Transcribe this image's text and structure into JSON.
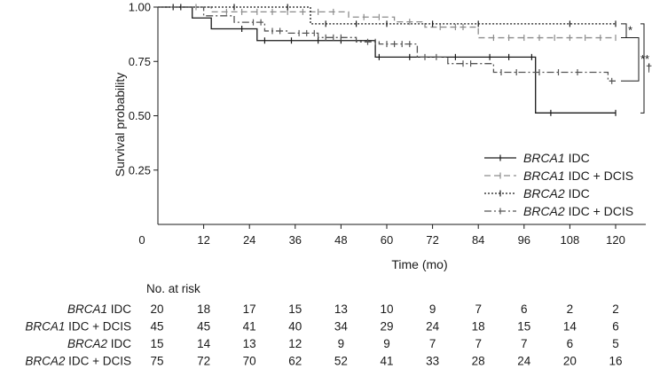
{
  "chart_data": {
    "type": "line",
    "xlabel": "Time (mo)",
    "ylabel": "Survival probability",
    "xlim": [
      0,
      125
    ],
    "ylim": [
      0,
      1.0
    ],
    "x_ticks": [
      0,
      12,
      24,
      36,
      48,
      60,
      72,
      84,
      96,
      108,
      120
    ],
    "x_tick_labels": [
      "0",
      "12",
      "24",
      "36",
      "48",
      "60",
      "72",
      "84",
      "96",
      "108",
      "120"
    ],
    "y_ticks": [
      0.25,
      0.5,
      0.75,
      1.0
    ],
    "y_tick_labels": [
      "0.25",
      "0.50",
      "0.75",
      "1.00"
    ],
    "grid": false,
    "legend_position": "bottom-right",
    "series": [
      {
        "name": "IDC",
        "gene": "BRCA1",
        "color": "#1a1a1a",
        "style": "solid",
        "x": [
          0,
          9,
          14,
          26,
          57,
          99,
          120
        ],
        "y": [
          1.0,
          0.95,
          0.9,
          0.846,
          0.77,
          0.513,
          0.513
        ],
        "censor_x": [
          4,
          22,
          28,
          35,
          42,
          48,
          58,
          66,
          78,
          87,
          92,
          98,
          103,
          120
        ],
        "censor_y": [
          1.0,
          0.9,
          0.846,
          0.846,
          0.846,
          0.846,
          0.77,
          0.77,
          0.77,
          0.77,
          0.77,
          0.77,
          0.513,
          0.513
        ]
      },
      {
        "name": "IDC + DCIS",
        "gene": "BRCA1",
        "color": "#8c8c8c",
        "style": "dashed",
        "x": [
          0,
          14,
          50,
          62,
          70,
          84,
          120
        ],
        "y": [
          1.0,
          0.978,
          0.954,
          0.932,
          0.908,
          0.859,
          0.859
        ],
        "censor_x": [
          10,
          18,
          22,
          26,
          30,
          34,
          38,
          42,
          46,
          54,
          58,
          66,
          74,
          78,
          80,
          88,
          92,
          96,
          100,
          104,
          108,
          112,
          116,
          120
        ],
        "censor_y": [
          1.0,
          0.978,
          0.978,
          0.978,
          0.978,
          0.978,
          0.978,
          0.978,
          0.978,
          0.954,
          0.954,
          0.932,
          0.908,
          0.908,
          0.908,
          0.859,
          0.859,
          0.859,
          0.859,
          0.859,
          0.859,
          0.859,
          0.859,
          0.859
        ]
      },
      {
        "name": "IDC",
        "gene": "BRCA2",
        "color": "#1a1a1a",
        "style": "dotted",
        "x": [
          0,
          40,
          120
        ],
        "y": [
          1.0,
          0.923,
          0.923
        ],
        "censor_x": [
          6,
          20,
          34,
          44,
          52,
          60,
          72,
          84,
          108,
          120
        ],
        "censor_y": [
          1.0,
          1.0,
          1.0,
          0.923,
          0.923,
          0.923,
          0.923,
          0.923,
          0.923,
          0.923
        ]
      },
      {
        "name": "IDC + DCIS",
        "gene": "BRCA2",
        "color": "#555555",
        "style": "dashdot",
        "x": [
          0,
          12,
          20,
          28,
          34,
          42,
          52,
          58,
          68,
          76,
          88,
          118,
          120
        ],
        "y": [
          1.0,
          0.96,
          0.93,
          0.89,
          0.88,
          0.86,
          0.84,
          0.83,
          0.77,
          0.74,
          0.7,
          0.66,
          0.66
        ],
        "censor_x": [
          25,
          27,
          30,
          32,
          37,
          39,
          41,
          44,
          46,
          48,
          55,
          57,
          60,
          62,
          64,
          66,
          70,
          73,
          80,
          82,
          90,
          94,
          100,
          105,
          110,
          119
        ],
        "censor_y": [
          0.93,
          0.93,
          0.89,
          0.89,
          0.88,
          0.88,
          0.88,
          0.86,
          0.86,
          0.86,
          0.84,
          0.84,
          0.83,
          0.83,
          0.83,
          0.83,
          0.77,
          0.77,
          0.74,
          0.74,
          0.7,
          0.7,
          0.7,
          0.7,
          0.7,
          0.66
        ]
      }
    ],
    "brackets": [
      {
        "from_series": 2,
        "to_series": 1,
        "label": "*"
      },
      {
        "from_series": 1,
        "to_series": 3,
        "label": "**"
      },
      {
        "from_series": 2,
        "to_series": 0,
        "label": "†"
      }
    ],
    "risk_table": {
      "header": "No. at risk",
      "rows": [
        {
          "gene": "BRCA1",
          "suffix": " IDC",
          "values": [
            20,
            18,
            17,
            15,
            13,
            10,
            9,
            7,
            6,
            2,
            2
          ]
        },
        {
          "gene": "BRCA1",
          "suffix": " IDC + DCIS",
          "values": [
            45,
            45,
            41,
            40,
            34,
            29,
            24,
            18,
            15,
            14,
            6
          ]
        },
        {
          "gene": "BRCA2",
          "suffix": " IDC",
          "values": [
            15,
            14,
            13,
            12,
            9,
            9,
            7,
            7,
            7,
            6,
            5
          ]
        },
        {
          "gene": "BRCA2",
          "suffix": " IDC + DCIS",
          "values": [
            75,
            72,
            70,
            62,
            52,
            41,
            33,
            28,
            24,
            20,
            16
          ]
        }
      ]
    }
  }
}
